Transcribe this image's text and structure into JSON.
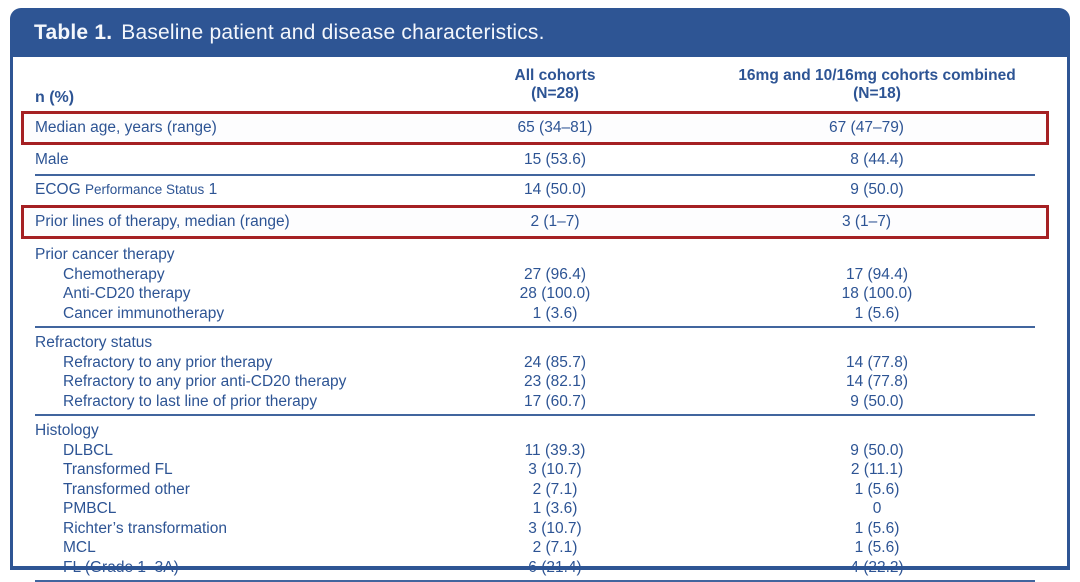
{
  "title": {
    "label": "Table 1.",
    "text": "Baseline patient and disease characteristics."
  },
  "header": {
    "row_label": "n (%)",
    "col_all_line1": "All cohorts",
    "col_all_line2": "(N=28)",
    "col_combined_line1": "16mg and 10/16mg cohorts combined",
    "col_combined_line2": "(N=18)"
  },
  "rows": {
    "median_age": {
      "label": "Median age, years (range)",
      "all": "65 (34–81)",
      "combined": "67 (47–79)",
      "highlighted": true
    },
    "male": {
      "label": "Male",
      "all": "15 (53.6)",
      "combined": "8 (44.4)",
      "highlighted": false
    },
    "ecog": {
      "label_main": "ECOG",
      "label_small": "Performance Status",
      "label_suffix": "1",
      "all": "14 (50.0)",
      "combined": "9 (50.0)",
      "highlighted": false
    },
    "prior_lines": {
      "label": "Prior lines of therapy, median (range)",
      "all": "2 (1–7)",
      "combined": "3 (1–7)",
      "highlighted": true
    }
  },
  "sections": {
    "prior_cancer_therapy": {
      "label": "Prior cancer therapy",
      "items": [
        {
          "label": "Chemotherapy",
          "all": "27 (96.4)",
          "combined": "17 (94.4)"
        },
        {
          "label": "Anti-CD20 therapy",
          "all": "28 (100.0)",
          "combined": "18 (100.0)"
        },
        {
          "label": "Cancer immunotherapy",
          "all": "1 (3.6)",
          "combined": "1 (5.6)"
        }
      ]
    },
    "refractory_status": {
      "label": "Refractory status",
      "items": [
        {
          "label": "Refractory to any prior therapy",
          "all": "24 (85.7)",
          "combined": "14 (77.8)"
        },
        {
          "label": "Refractory to any prior anti-CD20 therapy",
          "all": "23 (82.1)",
          "combined": "14 (77.8)"
        },
        {
          "label": "Refractory to last line of prior therapy",
          "all": "17 (60.7)",
          "combined": "9 (50.0)"
        }
      ]
    },
    "histology": {
      "label": "Histology",
      "items": [
        {
          "label": "DLBCL",
          "all": "11 (39.3)",
          "combined": "9 (50.0)"
        },
        {
          "label": "Transformed FL",
          "all": "3 (10.7)",
          "combined": "2 (11.1)"
        },
        {
          "label": "Transformed other",
          "all": "2 (7.1)",
          "combined": "1 (5.6)"
        },
        {
          "label": "PMBCL",
          "all": "1 (3.6)",
          "combined": "0"
        },
        {
          "label": "Richter’s transformation",
          "all": "3 (10.7)",
          "combined": "1 (5.6)"
        },
        {
          "label": "MCL",
          "all": "2 (7.1)",
          "combined": "1 (5.6)"
        },
        {
          "label": "FL (Grade 1–3A)",
          "all": "6 (21.4)",
          "combined": "4 (22.2)"
        }
      ]
    }
  },
  "colors": {
    "header_navy": "#2e5594",
    "text_blue": "#2d5494",
    "highlight_red": "#a52023",
    "divider_blue": "#41659e",
    "title_text": "#f4f7fc"
  }
}
